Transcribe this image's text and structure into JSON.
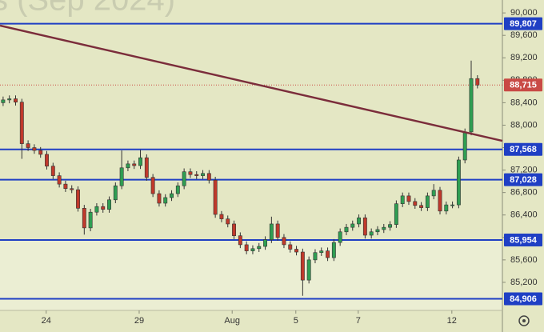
{
  "chart_data": {
    "type": "candlestick",
    "title": "s (Sep 2024)",
    "open": [
      88400,
      88450,
      88470,
      88410,
      87670,
      87600,
      87550,
      87480,
      87270,
      87100,
      86950,
      86870,
      86850,
      86520,
      86170,
      86450,
      86550,
      86500,
      86670,
      86920,
      87240,
      87310,
      87280,
      87420,
      87070,
      86780,
      86610,
      86710,
      86780,
      86920,
      87170,
      87120,
      87100,
      87140,
      87020,
      86410,
      86330,
      86240,
      86030,
      85870,
      85760,
      85800,
      85840,
      85960,
      86240,
      86000,
      85870,
      85790,
      85740,
      85240,
      85600,
      85730,
      85760,
      85640,
      85910,
      86100,
      86180,
      86240,
      86350,
      86040,
      86100,
      86140,
      86180,
      86230,
      86600,
      86740,
      86640,
      86570,
      86530,
      86740,
      86840,
      86470,
      86580,
      86580,
      87380,
      87880,
      88830
    ],
    "high": [
      88510,
      88530,
      88530,
      88470,
      87730,
      87660,
      87610,
      87540,
      87330,
      87160,
      87010,
      86930,
      86910,
      86580,
      86510,
      86610,
      86610,
      86730,
      86980,
      87550,
      87370,
      87370,
      87560,
      87480,
      87130,
      86840,
      86770,
      86840,
      86980,
      87230,
      87230,
      87180,
      87200,
      87200,
      87080,
      86470,
      86390,
      86300,
      86090,
      85930,
      85860,
      85900,
      86020,
      86370,
      86300,
      86060,
      85930,
      85850,
      85800,
      85660,
      85790,
      85820,
      85820,
      85970,
      86160,
      86240,
      86300,
      86410,
      86410,
      86160,
      86200,
      86240,
      86290,
      86660,
      86800,
      86800,
      86700,
      86630,
      86800,
      86950,
      86900,
      86640,
      86640,
      87440,
      87940,
      89150,
      88890
    ],
    "low": [
      88340,
      88390,
      88350,
      87400,
      87540,
      87490,
      87420,
      87210,
      87040,
      86890,
      86810,
      86790,
      86460,
      86050,
      86110,
      86390,
      86440,
      86440,
      86610,
      86860,
      87180,
      87220,
      87220,
      87010,
      86720,
      86550,
      86550,
      86650,
      86720,
      86860,
      87060,
      87040,
      87040,
      86960,
      86350,
      86270,
      86180,
      85970,
      85810,
      85700,
      85700,
      85740,
      85780,
      85900,
      85940,
      85810,
      85730,
      85680,
      84960,
      85180,
      85540,
      85670,
      85580,
      85580,
      85850,
      86040,
      86120,
      86180,
      85980,
      85980,
      86040,
      86080,
      86120,
      86170,
      86540,
      86580,
      86510,
      86470,
      86470,
      86680,
      86410,
      86410,
      86520,
      86520,
      87320,
      87820,
      88655
    ],
    "close": [
      88450,
      88470,
      88410,
      87670,
      87600,
      87550,
      87480,
      87270,
      87100,
      86950,
      86870,
      86850,
      86520,
      86170,
      86450,
      86550,
      86500,
      86670,
      86920,
      87240,
      87310,
      87280,
      87420,
      87070,
      86780,
      86610,
      86710,
      86780,
      86920,
      87170,
      87120,
      87100,
      87140,
      87020,
      86410,
      86330,
      86240,
      86030,
      85870,
      85760,
      85800,
      85840,
      85960,
      86240,
      86000,
      85870,
      85790,
      85740,
      85240,
      85600,
      85730,
      85760,
      85640,
      85910,
      86100,
      86180,
      86240,
      86350,
      86040,
      86100,
      86140,
      86180,
      86230,
      86600,
      86740,
      86640,
      86570,
      86530,
      86740,
      86840,
      86470,
      86580,
      86580,
      87380,
      87880,
      88830,
      88715
    ],
    "up_color": "#2f9e52",
    "down_color": "#c0392b",
    "xlim": [
      -0.5,
      80
    ],
    "xticks": [
      {
        "value": 6.9,
        "label": "24"
      },
      {
        "value": 21.8,
        "label": "29"
      },
      {
        "value": 36.7,
        "label": "Aug"
      },
      {
        "value": 46.9,
        "label": "5"
      },
      {
        "value": 56.9,
        "label": "7"
      },
      {
        "value": 71.9,
        "label": "12"
      }
    ],
    "ylim": [
      84700,
      90230
    ],
    "yticks": [
      {
        "value": 85200,
        "label": "85,200"
      },
      {
        "value": 85600,
        "label": "85,600"
      },
      {
        "value": 86000,
        "label": "86,000"
      },
      {
        "value": 86400,
        "label": "86,400"
      },
      {
        "value": 86800,
        "label": "86,800"
      },
      {
        "value": 87200,
        "label": "87,200"
      },
      {
        "value": 87600,
        "label": "87,600"
      },
      {
        "value": 88000,
        "label": "88,000"
      },
      {
        "value": 88400,
        "label": "88,400"
      },
      {
        "value": 88800,
        "label": "88,800"
      },
      {
        "value": 89200,
        "label": "89,200"
      },
      {
        "value": 89600,
        "label": "89,600"
      },
      {
        "value": 90000,
        "label": "90,000"
      }
    ],
    "grid": false,
    "levels": [
      {
        "value": 89807,
        "label": "89,807"
      },
      {
        "value": 87568,
        "label": "87,568"
      },
      {
        "value": 87028,
        "label": "87,028"
      },
      {
        "value": 85954,
        "label": "85,954"
      },
      {
        "value": 84906,
        "label": "84,906"
      }
    ],
    "level_color": "#1f3fc4",
    "current_price": {
      "value": 88715,
      "label": "88,715"
    },
    "current_color": "#c94a45",
    "trendline": {
      "values": [
        89774,
        87721
      ],
      "color": "#7b2d3b"
    }
  }
}
